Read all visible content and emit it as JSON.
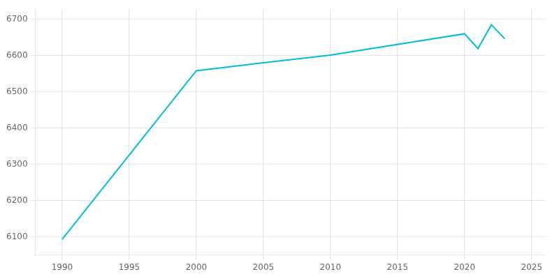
{
  "chart_data": {
    "type": "line",
    "x": [
      1990,
      2000,
      2005,
      2010,
      2020,
      2021,
      2022,
      2023
    ],
    "values": [
      6093,
      6558,
      6580,
      6601,
      6660,
      6619,
      6685,
      6646
    ],
    "color": "#00bcd4",
    "xlim": [
      1988,
      2026
    ],
    "ylim": [
      6050,
      6730
    ],
    "xticks": [
      1990,
      1995,
      2000,
      2005,
      2010,
      2015,
      2020,
      2025
    ],
    "yticks": [
      6100,
      6200,
      6300,
      6400,
      6500,
      6600,
      6700
    ],
    "grid": true
  }
}
